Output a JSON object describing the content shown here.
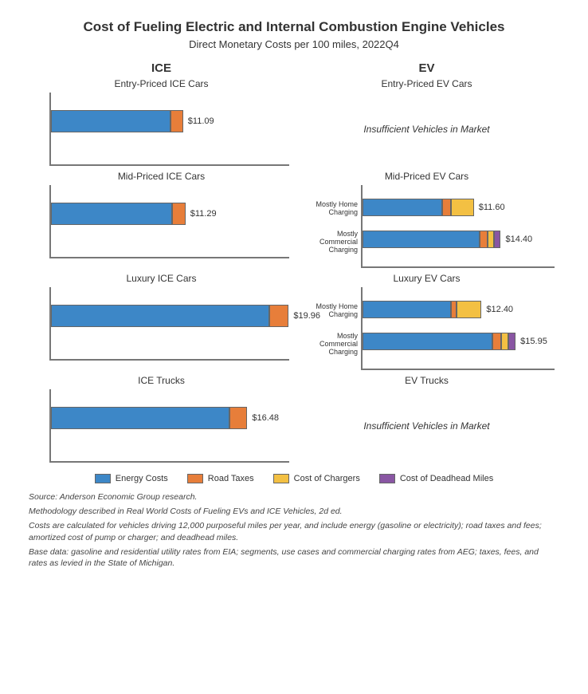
{
  "title": "Cost of Fueling Electric and Internal Combustion Engine Vehicles",
  "subtitle": "Direct Monetary Costs per 100 miles, 2022Q4",
  "columns": {
    "left": "ICE",
    "right": "EV"
  },
  "xmax": 20.0,
  "series": [
    {
      "key": "energy",
      "label": "Energy Costs",
      "color": "#3d87c7"
    },
    {
      "key": "road",
      "label": "Road Taxes",
      "color": "#e77e3a"
    },
    {
      "key": "chargers",
      "label": "Cost of Chargers",
      "color": "#f3c043"
    },
    {
      "key": "deadhead",
      "label": "Cost of Deadhead Miles",
      "color": "#8956a3"
    }
  ],
  "axis_color": "#777777",
  "bar_border_color": "#666666",
  "background_color": "#ffffff",
  "title_fontsize": 17,
  "subtitle_fontsize": 13,
  "panel_title_fontsize": 12,
  "value_label_fontsize": 11,
  "ylabel_fontsize": 9,
  "legend_fontsize": 11,
  "notes_fontsize": 10.5,
  "insufficient_text": "Insufficient Vehicles in Market",
  "rows": [
    {
      "left": {
        "title": "Entry-Priced ICE Cars",
        "bars": [
          {
            "label": "",
            "total": "$11.09",
            "segments": {
              "energy": 10.0,
              "road": 1.09
            }
          }
        ]
      },
      "right": {
        "title": "Entry-Priced EV Cars",
        "insufficient": true
      }
    },
    {
      "left": {
        "title": "Mid-Priced ICE Cars",
        "bars": [
          {
            "label": "",
            "total": "$11.29",
            "segments": {
              "energy": 10.2,
              "road": 1.09
            }
          }
        ]
      },
      "right": {
        "title": "Mid-Priced EV Cars",
        "bars": [
          {
            "label": "Mostly Home Charging",
            "total": "$11.60",
            "segments": {
              "energy": 8.3,
              "road": 0.9,
              "chargers": 2.4
            }
          },
          {
            "label": "Mostly Commercial Charging",
            "total": "$14.40",
            "segments": {
              "energy": 12.2,
              "road": 0.8,
              "chargers": 0.7,
              "deadhead": 0.7
            }
          }
        ]
      }
    },
    {
      "left": {
        "title": "Luxury ICE Cars",
        "bars": [
          {
            "label": "",
            "total": "$19.96",
            "segments": {
              "energy": 18.3,
              "road": 1.66
            }
          }
        ]
      },
      "right": {
        "title": "Luxury EV Cars",
        "bars": [
          {
            "label": "Mostly Home Charging",
            "total": "$12.40",
            "segments": {
              "energy": 9.2,
              "road": 0.6,
              "chargers": 2.6
            }
          },
          {
            "label": "Mostly Commercial Charging",
            "total": "$15.95",
            "segments": {
              "energy": 13.5,
              "road": 0.9,
              "chargers": 0.8,
              "deadhead": 0.75
            }
          }
        ]
      }
    },
    {
      "left": {
        "title": "ICE Trucks",
        "bars": [
          {
            "label": "",
            "total": "$16.48",
            "segments": {
              "energy": 15.0,
              "road": 1.48
            }
          }
        ]
      },
      "right": {
        "title": "EV Trucks",
        "insufficient": true
      }
    }
  ],
  "notes": [
    "Source: Anderson Economic Group research.",
    "Methodology described in Real World Costs of Fueling EVs and ICE Vehicles, 2d ed.",
    "Costs are calculated for vehicles driving 12,000 purposeful miles per year, and include energy (gasoline or electricity); road taxes and fees; amortized cost of pump or charger; and deadhead miles.",
    "Base data: gasoline and residential utility rates from EIA; segments, use cases and commercial charging rates from AEG; taxes, fees, and rates as levied in the State of Michigan."
  ]
}
